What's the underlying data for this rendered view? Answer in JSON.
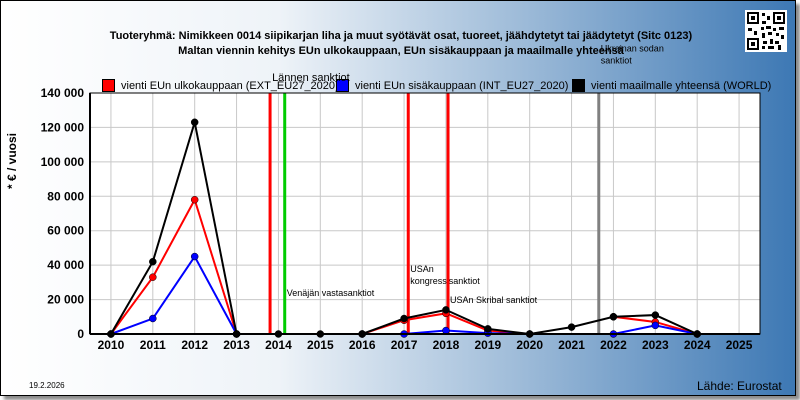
{
  "header": {
    "title_line1": "Tuoteryhmä: Nimikkeen 0014 siipikarjan liha ja muut syötävät osat, tuoreet, jäähdytetyt tai jäädytetyt (Sitc 0123)",
    "title_line2": "Maltan viennin kehitys EUn ulkokauppaan, EUn sisäkauppaan ja maailmalle yhteensä"
  },
  "legend": [
    {
      "label": "vienti EUn ulkokauppaan (EXT_EU27_2020)",
      "color": "#ff0000"
    },
    {
      "label": "vienti EUn sisäkauppaan (INT_EU27_2020)",
      "color": "#0000ff"
    },
    {
      "label": "vienti maailmalle yhteensä (WORLD)",
      "color": "#000000"
    }
  ],
  "footer": {
    "date": "19.2.2026",
    "source": "Lähde: Eurostat"
  },
  "chart_data": {
    "type": "line",
    "ylabel": "* € / vuosi",
    "ylim": [
      0,
      140000
    ],
    "yticks": [
      0,
      20000,
      40000,
      60000,
      80000,
      100000,
      120000,
      140000
    ],
    "ytick_labels": [
      "0",
      "20 000",
      "40 000",
      "60 000",
      "80 000",
      "100 000",
      "120 000",
      "140 000"
    ],
    "x": [
      "2010",
      "2011",
      "2012",
      "2013",
      "2014",
      "2015",
      "2016",
      "2017",
      "2018",
      "2019",
      "2020",
      "2021",
      "2022",
      "2023",
      "2024",
      "2025"
    ],
    "grid": true,
    "series": [
      {
        "name": "vienti EUn ulkokauppaan (EXT_EU27_2020)",
        "color": "#ff0000",
        "values": [
          0,
          33000,
          78000,
          0,
          null,
          null,
          0,
          8000,
          12000,
          2000,
          0,
          null,
          10000,
          7000,
          0,
          null
        ]
      },
      {
        "name": "vienti EUn sisäkauppaan (INT_EU27_2020)",
        "color": "#0000ff",
        "values": [
          0,
          9000,
          45000,
          0,
          null,
          null,
          0,
          0,
          2000,
          500,
          0,
          null,
          0,
          5000,
          0,
          null
        ]
      },
      {
        "name": "vienti maailmalle yhteensä (WORLD)",
        "color": "#000000",
        "values": [
          0,
          42000,
          123000,
          0,
          0,
          0,
          0,
          9000,
          14000,
          3000,
          0,
          4000,
          10000,
          11000,
          0,
          null
        ]
      }
    ],
    "events": [
      {
        "x": 2013.8,
        "color": "#ff0000",
        "label": "Lännen sanktiot",
        "label_value": 147000
      },
      {
        "x": 2014.15,
        "color": "#00cc00",
        "label": "Venäjän vastasanktiot",
        "label_value": 22000
      },
      {
        "x": 2017.1,
        "color": "#ff0000",
        "label": "USAn\nkongressisanktiot",
        "label_value": 36000
      },
      {
        "x": 2018.05,
        "color": "#ff0000",
        "label": "USAn Skribal sanktiot",
        "label_value": 18000
      },
      {
        "x": 2021.65,
        "color": "#808080",
        "label": "Ukrainan sodan\nsanktiot",
        "label_value": 164000
      }
    ]
  }
}
